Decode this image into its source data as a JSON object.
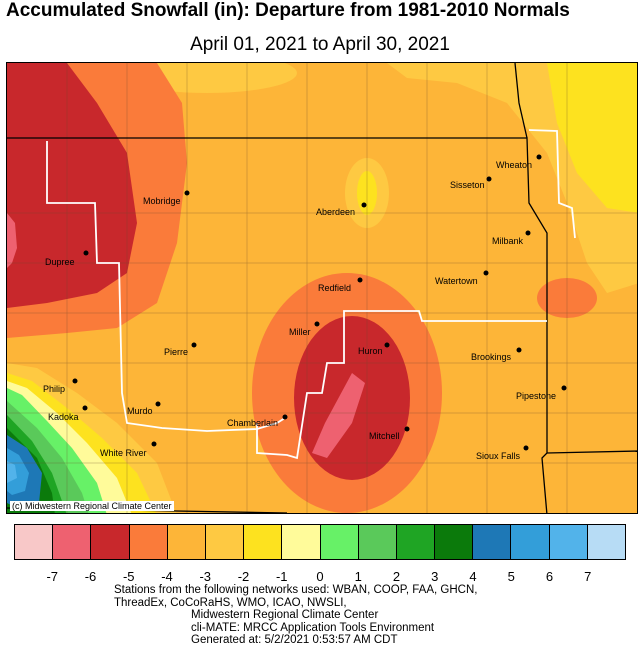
{
  "title": "Accumulated Snowfall (in): Departure from 1981-2010 Normals",
  "subtitle": "April 01, 2021 to April 30, 2021",
  "credit": "(c) Midwestern Regional Climate Center",
  "cities": [
    {
      "name": "Wheaton"
    },
    {
      "name": "Sisseton"
    },
    {
      "name": "Mobridge"
    },
    {
      "name": "Aberdeen"
    },
    {
      "name": "Milbank"
    },
    {
      "name": "Dupree"
    },
    {
      "name": "Watertown"
    },
    {
      "name": "Redfield"
    },
    {
      "name": "Miller"
    },
    {
      "name": "Huron"
    },
    {
      "name": "Pierre"
    },
    {
      "name": "Brookings"
    },
    {
      "name": "Philip"
    },
    {
      "name": "Pipestone"
    },
    {
      "name": "Murdo"
    },
    {
      "name": "Kadoka"
    },
    {
      "name": "Chamberlain"
    },
    {
      "name": "Mitchell"
    },
    {
      "name": "White River"
    },
    {
      "name": "Sioux Falls"
    }
  ],
  "legend": {
    "colors": [
      "#f8c8c8",
      "#ee6170",
      "#c8282c",
      "#fa7b3a",
      "#fdb538",
      "#fec942",
      "#fde21f",
      "#fffb9a",
      "#67f167",
      "#5ac95a",
      "#1fa524",
      "#0b7a0b",
      "#1e78b6",
      "#339ed9",
      "#52b3ea",
      "#b7dcf5"
    ],
    "ticks": [
      "-7",
      "-6",
      "-5",
      "-4",
      "-3",
      "-2",
      "-1",
      "0",
      "1",
      "2",
      "3",
      "4",
      "5",
      "6",
      "7"
    ]
  },
  "footer": {
    "line1": "Stations from the following networks used: WBAN, COOP, FAA, GHCN,",
    "line2": "ThreadEx, CoCoRaHS, WMO, ICAO, NWSLI,",
    "line3": "Midwestern Regional Climate Center",
    "line4": "cli-MATE: MRCC Application Tools Environment",
    "line5": "Generated at: 5/2/2021 0:53:57 AM CDT"
  }
}
